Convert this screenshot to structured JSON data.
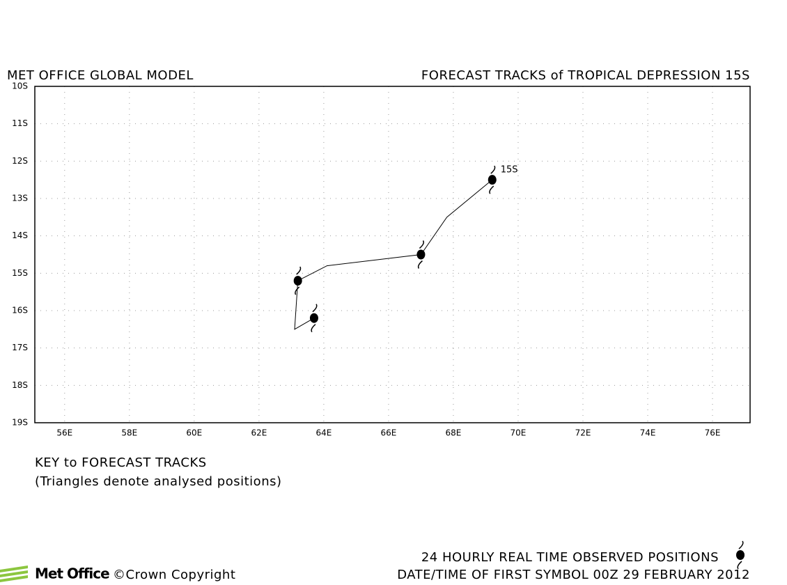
{
  "chart_data": {
    "type": "line",
    "title_left": "MET OFFICE GLOBAL MODEL",
    "title_right": "FORECAST TRACKS of TROPICAL DEPRESSION 15S",
    "xlim": [
      55.08,
      77.16
    ],
    "ylim": [
      -19,
      -10
    ],
    "xticks": [
      {
        "value": 56,
        "label": "56E"
      },
      {
        "value": 58,
        "label": "58E"
      },
      {
        "value": 60,
        "label": "60E"
      },
      {
        "value": 62,
        "label": "62E"
      },
      {
        "value": 64,
        "label": "64E"
      },
      {
        "value": 66,
        "label": "66E"
      },
      {
        "value": 68,
        "label": "68E"
      },
      {
        "value": 70,
        "label": "70E"
      },
      {
        "value": 72,
        "label": "72E"
      },
      {
        "value": 74,
        "label": "74E"
      },
      {
        "value": 76,
        "label": "76E"
      }
    ],
    "yticks": [
      {
        "value": -10,
        "label": "10S"
      },
      {
        "value": -11,
        "label": "11S"
      },
      {
        "value": -12,
        "label": "12S"
      },
      {
        "value": -13,
        "label": "13S"
      },
      {
        "value": -14,
        "label": "14S"
      },
      {
        "value": -15,
        "label": "15S"
      },
      {
        "value": -16,
        "label": "16S"
      },
      {
        "value": -17,
        "label": "17S"
      },
      {
        "value": -18,
        "label": "18S"
      },
      {
        "value": -19,
        "label": "19S"
      }
    ],
    "grid": true,
    "series": [
      {
        "name": "15S",
        "type": "line",
        "color": "#000000",
        "x": [
          69.2,
          67.8,
          67.0,
          64.1,
          63.2,
          63.1,
          63.7
        ],
        "values": [
          -12.5,
          -13.5,
          -14.5,
          -14.8,
          -15.2,
          -16.5,
          -16.2
        ]
      },
      {
        "name": "24 HOURLY REAL TIME OBSERVED POSITIONS",
        "type": "scatter",
        "color": "#000000",
        "x": [
          69.2,
          67.0,
          63.2,
          63.7
        ],
        "values": [
          -12.5,
          -14.5,
          -15.2,
          -16.2
        ]
      }
    ]
  },
  "key": {
    "title": "KEY to FORECAST TRACKS",
    "note": "(Triangles denote analysed positions)"
  },
  "footer": {
    "logo": "Met Office",
    "copyright": "©Crown Copyright",
    "date": "DATE/TIME OF FIRST SYMBOL 00Z 29 FEBRUARY 2012"
  }
}
